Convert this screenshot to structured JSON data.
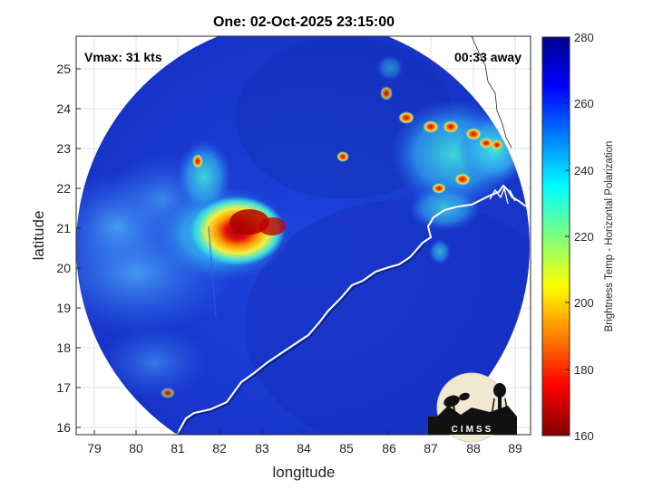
{
  "title": "One: 02-Oct-2025 23:15:00",
  "annotations": {
    "vmax": "Vmax: 31 kts",
    "away": "00:33 away"
  },
  "axes": {
    "xlabel": "longitude",
    "ylabel": "latitude",
    "xticks": [
      "79",
      "80",
      "81",
      "82",
      "83",
      "84",
      "85",
      "86",
      "87",
      "88",
      "89"
    ],
    "yticks": [
      "16",
      "17",
      "18",
      "19",
      "20",
      "21",
      "22",
      "23",
      "24",
      "25"
    ],
    "xlim": [
      78.7,
      89.3
    ],
    "ylim": [
      15.8,
      25.8
    ]
  },
  "colorbar": {
    "label": "Brightness Temp - Horizontal Polarization",
    "ticks": [
      "160",
      "180",
      "200",
      "220",
      "240",
      "260",
      "280"
    ],
    "range": [
      160,
      280
    ],
    "colormap": "jet"
  },
  "logo": {
    "text": "CIMSS"
  },
  "colors": {
    "background_cold": "#1b3fd6",
    "background_edge": "#0a1a8c",
    "coastline": "#ffffff"
  }
}
